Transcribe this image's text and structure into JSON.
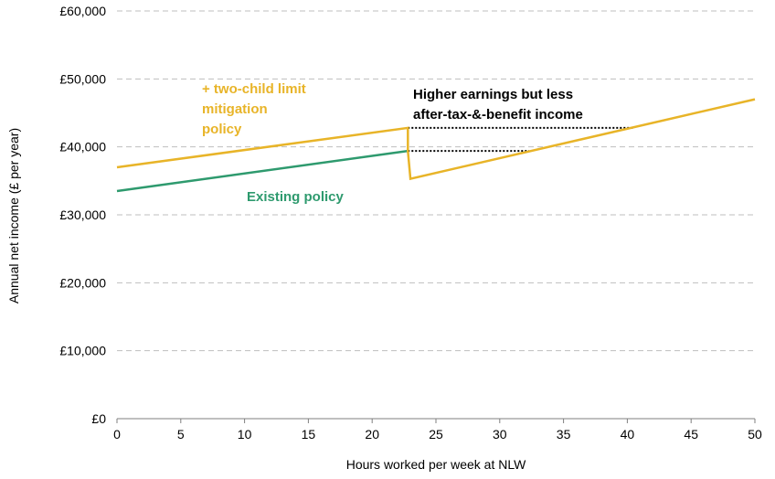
{
  "chart_data": {
    "type": "line",
    "xlabel": "Hours worked per week at NLW",
    "ylabel": "Annual net income (£ per year)",
    "xlim": [
      0,
      50
    ],
    "ylim": [
      0,
      60000
    ],
    "x_ticks": [
      "0",
      "5",
      "10",
      "15",
      "20",
      "25",
      "30",
      "35",
      "40",
      "45",
      "50"
    ],
    "y_ticks": [
      "£0",
      "£10,000",
      "£20,000",
      "£30,000",
      "£40,000",
      "£50,000",
      "£60,000"
    ],
    "grid": "horizontal dashed",
    "series": [
      {
        "name": "Existing policy",
        "color": "#2e9a6e",
        "x": [
          0,
          22.8
        ],
        "y": [
          33500,
          39400
        ]
      },
      {
        "name": "+ two-child limit mitigation policy",
        "color": "#e8b428",
        "x": [
          0,
          22.8,
          22.8,
          23.0,
          50
        ],
        "y": [
          37000,
          42800,
          39400,
          35300,
          47000
        ]
      }
    ],
    "reference_lines": [
      {
        "x": [
          22.8,
          40.5
        ],
        "y": [
          42800,
          42800
        ],
        "style": "dotted",
        "color": "#000000"
      },
      {
        "x": [
          22.8,
          32.3
        ],
        "y": [
          39400,
          39400
        ],
        "style": "dotted",
        "color": "#000000"
      }
    ],
    "annotations": [
      {
        "lines": [
          "+ two-child limit",
          "mitigation",
          "policy"
        ],
        "color": "#e8b428"
      },
      {
        "lines": [
          "Existing policy"
        ],
        "color": "#2e9a6e"
      },
      {
        "lines": [
          "Higher earnings but less",
          "after-tax-&-benefit income"
        ],
        "color": "#000000"
      }
    ]
  }
}
